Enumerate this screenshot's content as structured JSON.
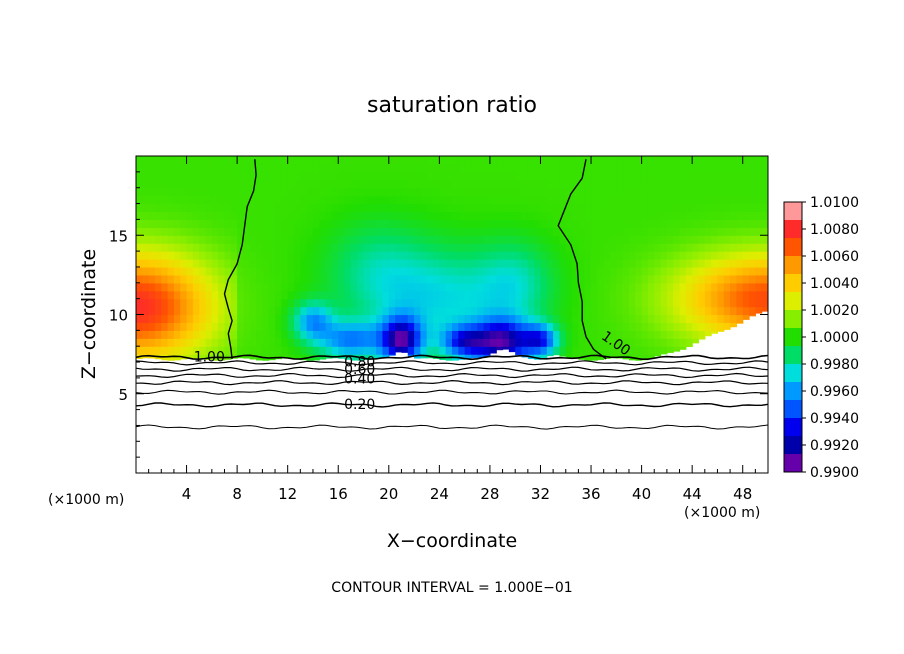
{
  "chart_data": {
    "type": "heatmap",
    "title": "saturation ratio",
    "xlabel": "X−coordinate",
    "ylabel": "Z−coordinate",
    "x_unit_left": "(×1000 m)",
    "x_unit_right": "(×1000 m)",
    "xlim": [
      0,
      50
    ],
    "ylim": [
      0,
      20
    ],
    "xticks": [
      4,
      8,
      12,
      16,
      20,
      24,
      28,
      32,
      36,
      40,
      44,
      48
    ],
    "yticks": [
      5,
      10,
      15
    ],
    "colorbar": {
      "min": 0.99,
      "max": 1.01,
      "labels": [
        "1.0100",
        "1.0080",
        "1.0060",
        "1.0040",
        "1.0020",
        "1.0000",
        "0.9980",
        "0.9960",
        "0.9940",
        "0.9920",
        "0.9900"
      ],
      "colors": [
        "#ff9999",
        "#ff2a2a",
        "#ff5500",
        "#ff9900",
        "#ffcc00",
        "#ddee00",
        "#88ee00",
        "#22dd00",
        "#00dd66",
        "#00dddd",
        "#0099ff",
        "#0055ff",
        "#0000ee",
        "#0000aa",
        "#6600aa"
      ]
    },
    "shaded_field": {
      "variable": "saturation ratio",
      "description_values": {
        "background": 1.0003,
        "left_edge_max": 1.0085,
        "right_edge_max": 1.0075,
        "central_min": 0.9915
      }
    },
    "contours": [
      {
        "label": "1.00",
        "level": 1.0
      },
      {
        "label": "0.80",
        "level": 0.8
      },
      {
        "label": "0.60",
        "level": 0.6
      },
      {
        "label": "0.40",
        "level": 0.4
      },
      {
        "label": "0.20",
        "level": 0.2
      }
    ],
    "footer": "CONTOUR INTERVAL = 1.000E−01"
  }
}
